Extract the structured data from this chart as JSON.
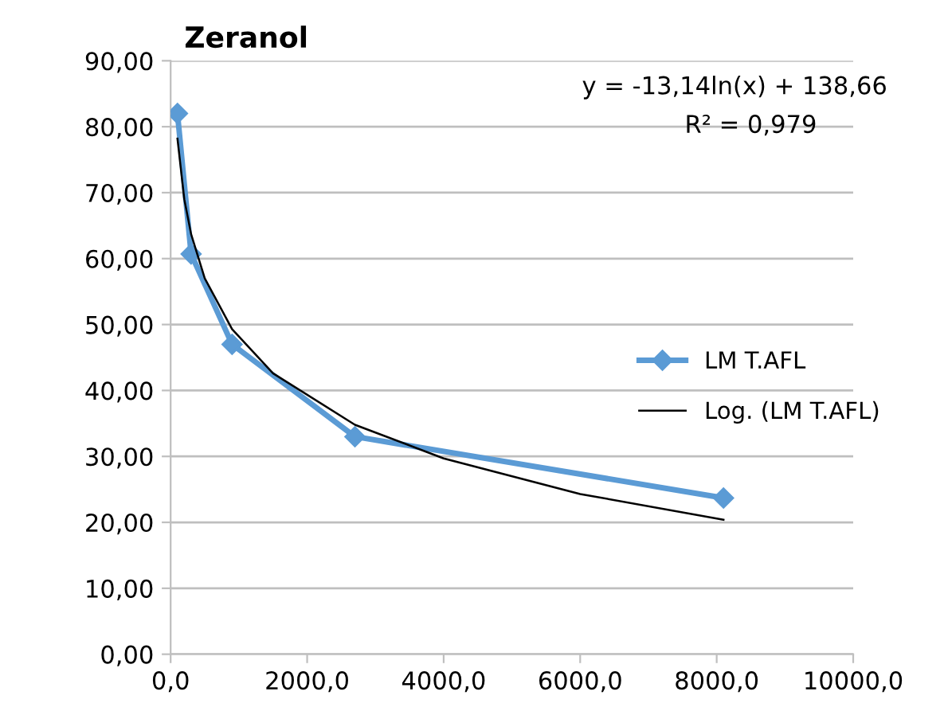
{
  "chart_data": {
    "type": "line",
    "title": "Zeranol",
    "series": [
      {
        "name": "LM T.AFL",
        "color": "#5b9bd5",
        "marker": "diamond",
        "line_style": "solid",
        "x": [
          100,
          300,
          900,
          2700,
          8100
        ],
        "values": [
          82,
          60.7,
          47,
          33,
          23.7
        ]
      },
      {
        "name": "Log. (LM T.AFL)",
        "color": "#000000",
        "marker": "none",
        "line_style": "solid",
        "x": [
          100,
          200,
          300,
          500,
          900,
          1500,
          2700,
          4000,
          6000,
          8100
        ],
        "values": [
          78.2,
          69,
          63.7,
          57,
          49.3,
          42.6,
          34.8,
          29.7,
          24.3,
          20.4
        ]
      }
    ],
    "xlim": [
      0,
      10000
    ],
    "xticks": [
      {
        "value": 0,
        "label": "0,0"
      },
      {
        "value": 2000,
        "label": "2000,0"
      },
      {
        "value": 4000,
        "label": "4000,0"
      },
      {
        "value": 6000,
        "label": "6000,0"
      },
      {
        "value": 8000,
        "label": "8000,0"
      },
      {
        "value": 10000,
        "label": "10000,0"
      }
    ],
    "ylim": [
      0,
      90
    ],
    "yticks": [
      {
        "value": 0,
        "label": "0,00"
      },
      {
        "value": 10,
        "label": "10,00"
      },
      {
        "value": 20,
        "label": "20,00"
      },
      {
        "value": 30,
        "label": "30,00"
      },
      {
        "value": 40,
        "label": "40,00"
      },
      {
        "value": 50,
        "label": "50,00"
      },
      {
        "value": 60,
        "label": "60,00"
      },
      {
        "value": 70,
        "label": "70,00"
      },
      {
        "value": 80,
        "label": "80,00"
      },
      {
        "value": 90,
        "label": "90,00"
      }
    ],
    "grid": "y",
    "legend": "right",
    "annotations": [
      "y = -13,14ln(x) + 138,66",
      "R² = 0,979"
    ]
  }
}
